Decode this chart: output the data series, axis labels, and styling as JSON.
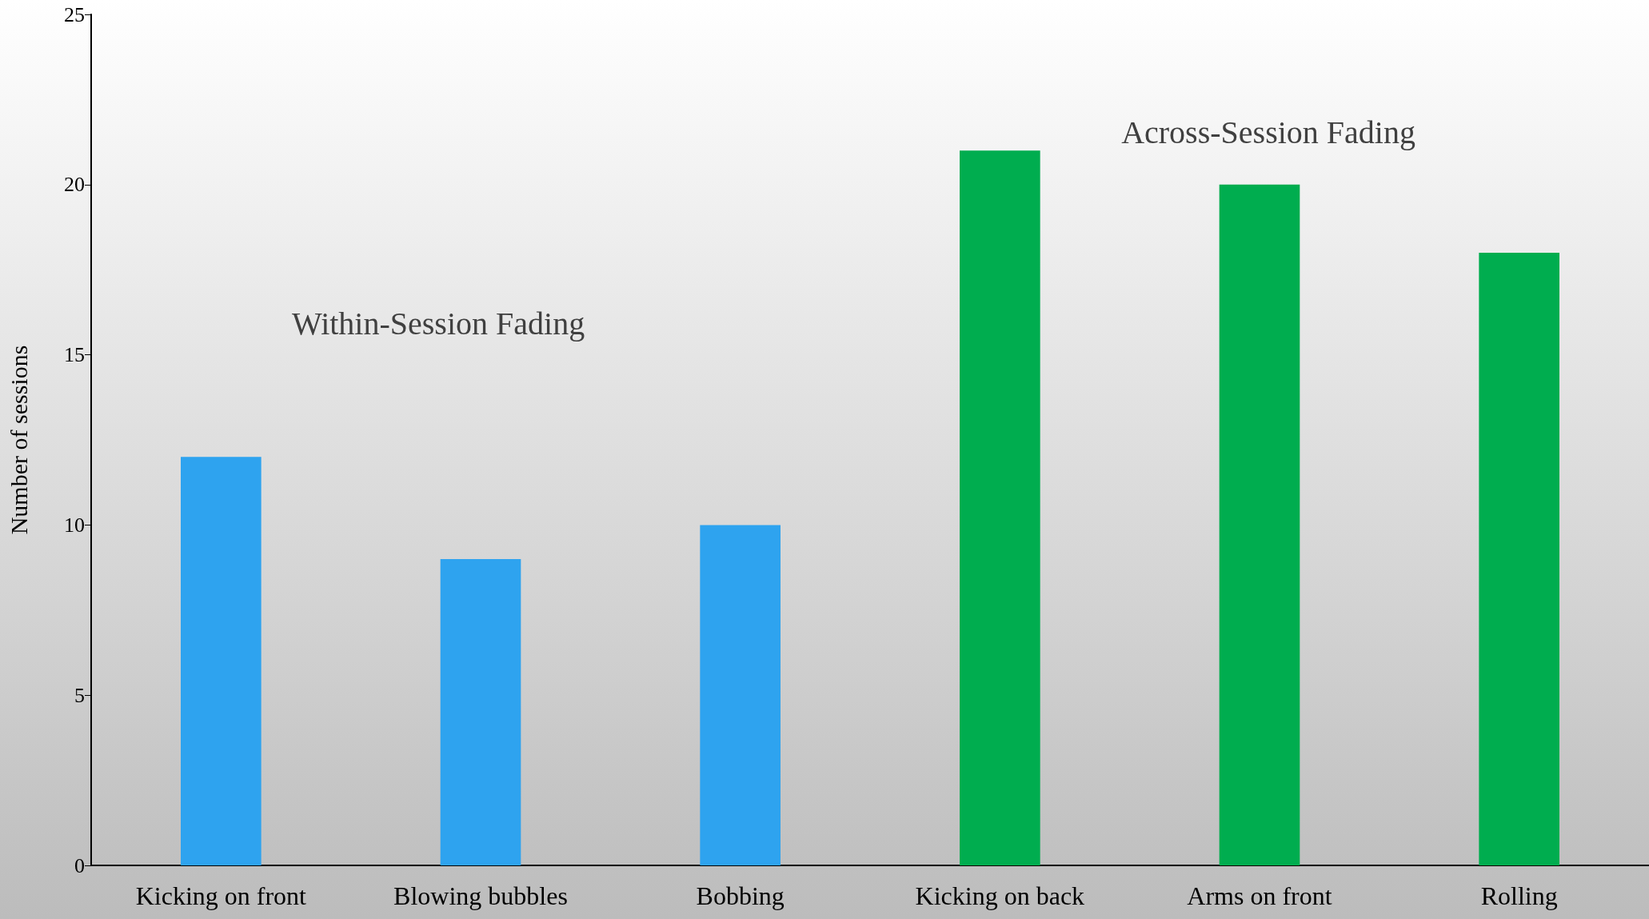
{
  "chart_data": {
    "type": "bar",
    "ylabel": "Number of sessions",
    "categories": [
      "Kicking on front",
      "Blowing bubbles",
      "Bobbing",
      "Kicking on back",
      "Arms on front",
      "Rolling"
    ],
    "values": [
      12,
      9,
      10,
      21,
      20,
      18
    ],
    "colors": [
      "#2ea3ef",
      "#2ea3ef",
      "#2ea3ef",
      "#00ad4f",
      "#00ad4f",
      "#00ad4f"
    ],
    "ylim": [
      0,
      25
    ],
    "yticks": [
      0,
      5,
      10,
      15,
      20,
      25
    ],
    "grid": false,
    "annotations": [
      "Within-Session Fading",
      "Across-Session Fading"
    ]
  }
}
